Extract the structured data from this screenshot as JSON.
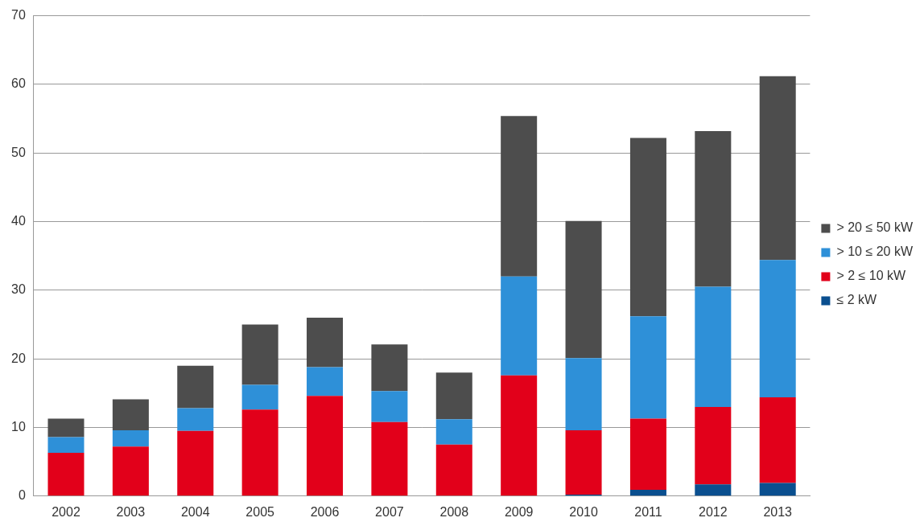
{
  "chart_data": {
    "type": "bar",
    "stacked": true,
    "grid": true,
    "legend": "right",
    "categories": [
      "2002",
      "2003",
      "2004",
      "2005",
      "2006",
      "2007",
      "2008",
      "2009",
      "2010",
      "2011",
      "2012",
      "2013"
    ],
    "series": [
      {
        "name": "≤ 2 kW",
        "color": "#0a4f8f",
        "values": [
          0,
          0,
          0,
          0,
          0,
          0,
          0,
          0,
          0.2,
          0.9,
          1.7,
          1.9
        ]
      },
      {
        "name": "> 2 ≤ 10 kW",
        "color": "#e2001a",
        "values": [
          6.3,
          7.2,
          9.5,
          12.6,
          14.6,
          10.8,
          7.5,
          17.6,
          9.4,
          10.4,
          11.3,
          12.5
        ]
      },
      {
        "name": "> 10 ≤ 20 kW",
        "color": "#2e90d8",
        "values": [
          2.3,
          2.4,
          3.3,
          3.6,
          4.2,
          4.5,
          3.7,
          14.4,
          10.5,
          14.9,
          17.5,
          20.0
        ]
      },
      {
        "name": "> 20 ≤ 50 kW",
        "color": "#4d4d4d",
        "values": [
          2.7,
          4.5,
          6.2,
          8.8,
          7.2,
          6.8,
          6.8,
          23.4,
          20.0,
          26.0,
          22.7,
          26.8
        ]
      }
    ],
    "ylim": [
      0,
      70
    ],
    "yticks": [
      0,
      10,
      20,
      30,
      40,
      50,
      60,
      70
    ]
  }
}
